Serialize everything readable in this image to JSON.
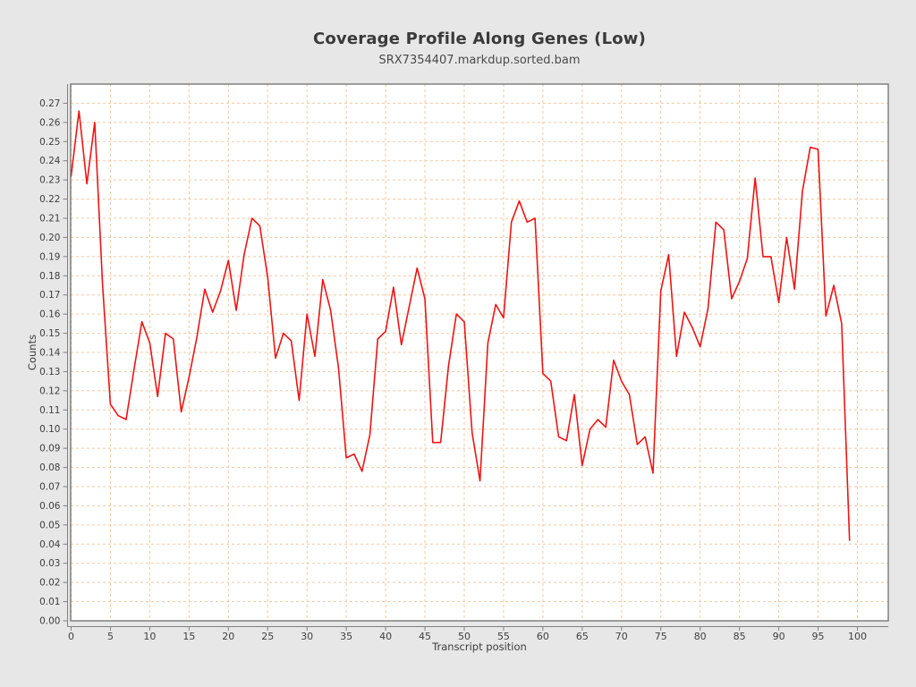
{
  "style": {
    "background": "#e7e7e7",
    "plot_background": "#ffffff",
    "grid_color": "#f4c8a1",
    "line_color": "#ee1414",
    "frame_color": "#6e6e6e",
    "axis_color": "#808080",
    "text_color": "#3a3a3a"
  },
  "chart_data": {
    "type": "line",
    "title": "Coverage Profile Along Genes (Low)",
    "subtitle": "SRX7354407.markdup.sorted.bam",
    "xlabel": "Transcript position",
    "ylabel": "Counts",
    "legend": "none",
    "grid": "dashed-both-axes",
    "xlim": [
      0,
      104
    ],
    "ylim": [
      0,
      0.28
    ],
    "xticks": [
      0,
      5,
      10,
      15,
      20,
      25,
      30,
      35,
      40,
      45,
      50,
      55,
      60,
      65,
      70,
      75,
      80,
      85,
      90,
      95,
      100
    ],
    "yticks": [
      0.0,
      0.01,
      0.02,
      0.03,
      0.04,
      0.05,
      0.06,
      0.07,
      0.08,
      0.09,
      0.1,
      0.11,
      0.12,
      0.13,
      0.14,
      0.15,
      0.16,
      0.17,
      0.18,
      0.19,
      0.2,
      0.21,
      0.22,
      0.23,
      0.24,
      0.25,
      0.26,
      0.27
    ],
    "x": [
      0,
      1,
      2,
      3,
      4,
      5,
      6,
      7,
      8,
      9,
      10,
      11,
      12,
      13,
      14,
      15,
      16,
      17,
      18,
      19,
      20,
      21,
      22,
      23,
      24,
      25,
      26,
      27,
      28,
      29,
      30,
      31,
      32,
      33,
      34,
      35,
      36,
      37,
      38,
      39,
      40,
      41,
      42,
      43,
      44,
      45,
      46,
      47,
      48,
      49,
      50,
      51,
      52,
      53,
      54,
      55,
      56,
      57,
      58,
      59,
      60,
      61,
      62,
      63,
      64,
      65,
      66,
      67,
      68,
      69,
      70,
      71,
      72,
      73,
      74,
      75,
      76,
      77,
      78,
      79,
      80,
      81,
      82,
      83,
      84,
      85,
      86,
      87,
      88,
      89,
      90,
      91,
      92,
      93,
      94,
      95,
      96,
      97,
      98,
      99
    ],
    "values": [
      0.232,
      0.266,
      0.228,
      0.26,
      0.175,
      0.113,
      0.107,
      0.105,
      0.131,
      0.156,
      0.145,
      0.117,
      0.15,
      0.147,
      0.109,
      0.127,
      0.148,
      0.173,
      0.161,
      0.172,
      0.188,
      0.162,
      0.191,
      0.21,
      0.206,
      0.179,
      0.137,
      0.15,
      0.146,
      0.115,
      0.16,
      0.138,
      0.178,
      0.162,
      0.132,
      0.085,
      0.087,
      0.078,
      0.097,
      0.147,
      0.151,
      0.174,
      0.144,
      0.164,
      0.184,
      0.168,
      0.093,
      0.093,
      0.133,
      0.16,
      0.156,
      0.098,
      0.073,
      0.145,
      0.165,
      0.158,
      0.208,
      0.219,
      0.208,
      0.21,
      0.129,
      0.125,
      0.096,
      0.094,
      0.118,
      0.081,
      0.1,
      0.105,
      0.101,
      0.136,
      0.125,
      0.118,
      0.092,
      0.096,
      0.077,
      0.172,
      0.191,
      0.138,
      0.161,
      0.153,
      0.143,
      0.163,
      0.208,
      0.204,
      0.168,
      0.177,
      0.189,
      0.231,
      0.19,
      0.19,
      0.166,
      0.2,
      0.173,
      0.224,
      0.247,
      0.246,
      0.159,
      0.175,
      0.155,
      0.042
    ]
  }
}
